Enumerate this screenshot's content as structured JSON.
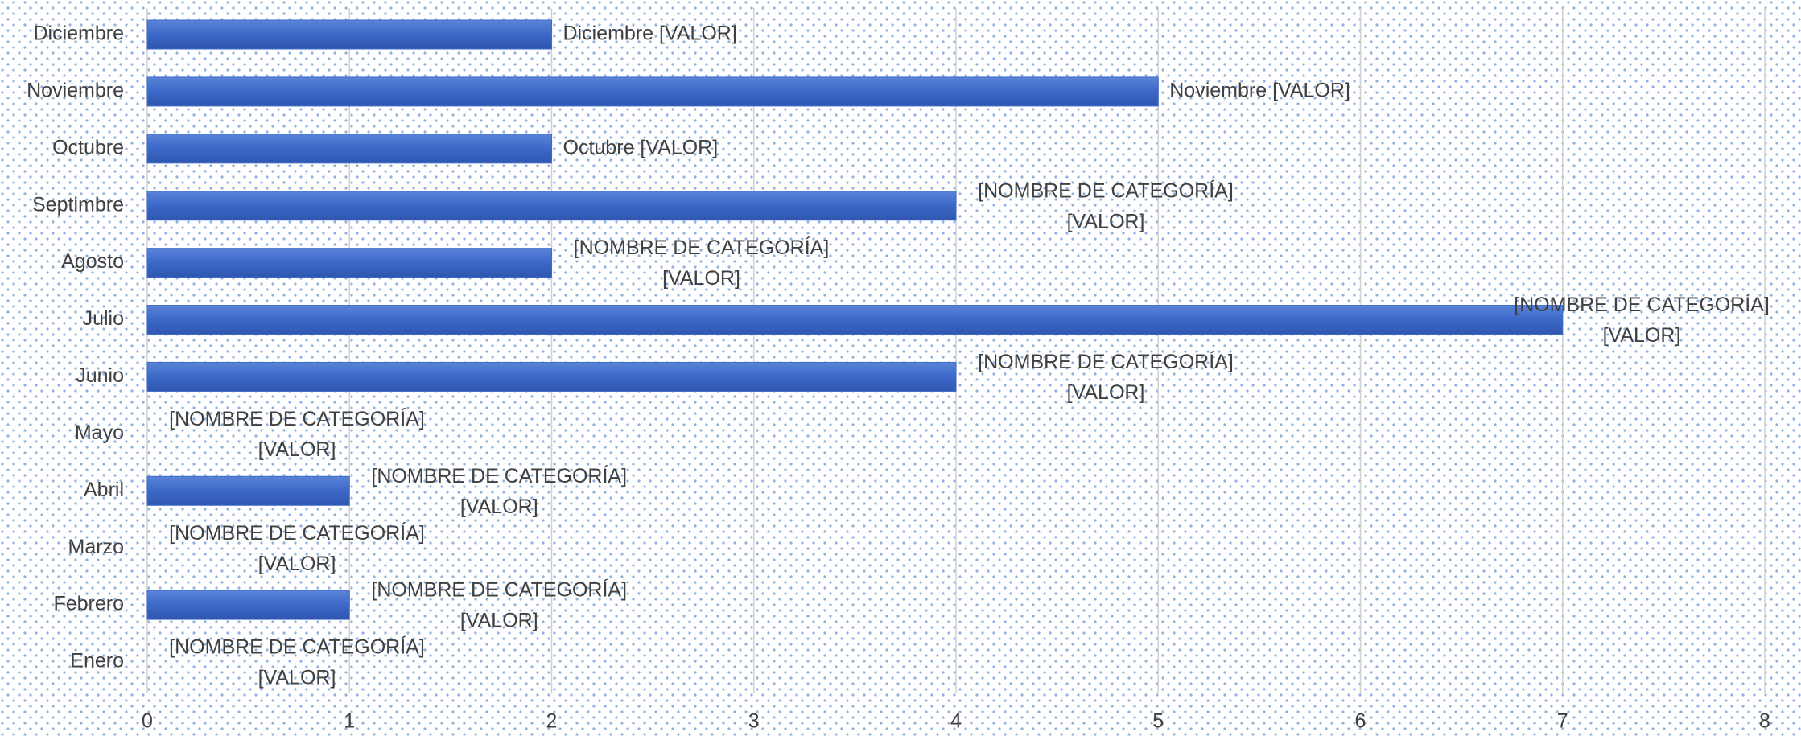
{
  "chart_data": {
    "type": "hbar",
    "categories": [
      "Enero",
      "Febrero",
      "Marzo",
      "Abril",
      "Mayo",
      "Junio",
      "Julio",
      "Agosto",
      "Septimbre",
      "Octubre",
      "Noviembre",
      "Diciembre"
    ],
    "values": [
      0,
      1,
      0,
      1,
      0,
      4,
      7,
      2,
      4,
      2,
      5,
      2
    ],
    "data_labels": [
      [
        "[NOMBRE DE CATEGORÍA]",
        "[VALOR]"
      ],
      [
        "[NOMBRE DE CATEGORÍA]",
        "[VALOR]"
      ],
      [
        "[NOMBRE DE CATEGORÍA]",
        "[VALOR]"
      ],
      [
        "[NOMBRE DE CATEGORÍA]",
        "[VALOR]"
      ],
      [
        "[NOMBRE DE CATEGORÍA]",
        "[VALOR]"
      ],
      [
        "[NOMBRE DE CATEGORÍA]",
        "[VALOR]"
      ],
      [
        "[NOMBRE DE CATEGORÍA]",
        "[VALOR]"
      ],
      [
        "[NOMBRE DE CATEGORÍA]",
        "[VALOR]"
      ],
      [
        "[NOMBRE DE CATEGORÍA]",
        "[VALOR]"
      ],
      [
        "Octubre [VALOR]"
      ],
      [
        "Noviembre [VALOR]"
      ],
      [
        "Diciembre [VALOR]"
      ]
    ],
    "color": "#3f6bcb",
    "xlim": [
      0,
      8
    ],
    "xticks": [
      0,
      1,
      2,
      3,
      4,
      5,
      6,
      7,
      8
    ],
    "grid": true
  }
}
